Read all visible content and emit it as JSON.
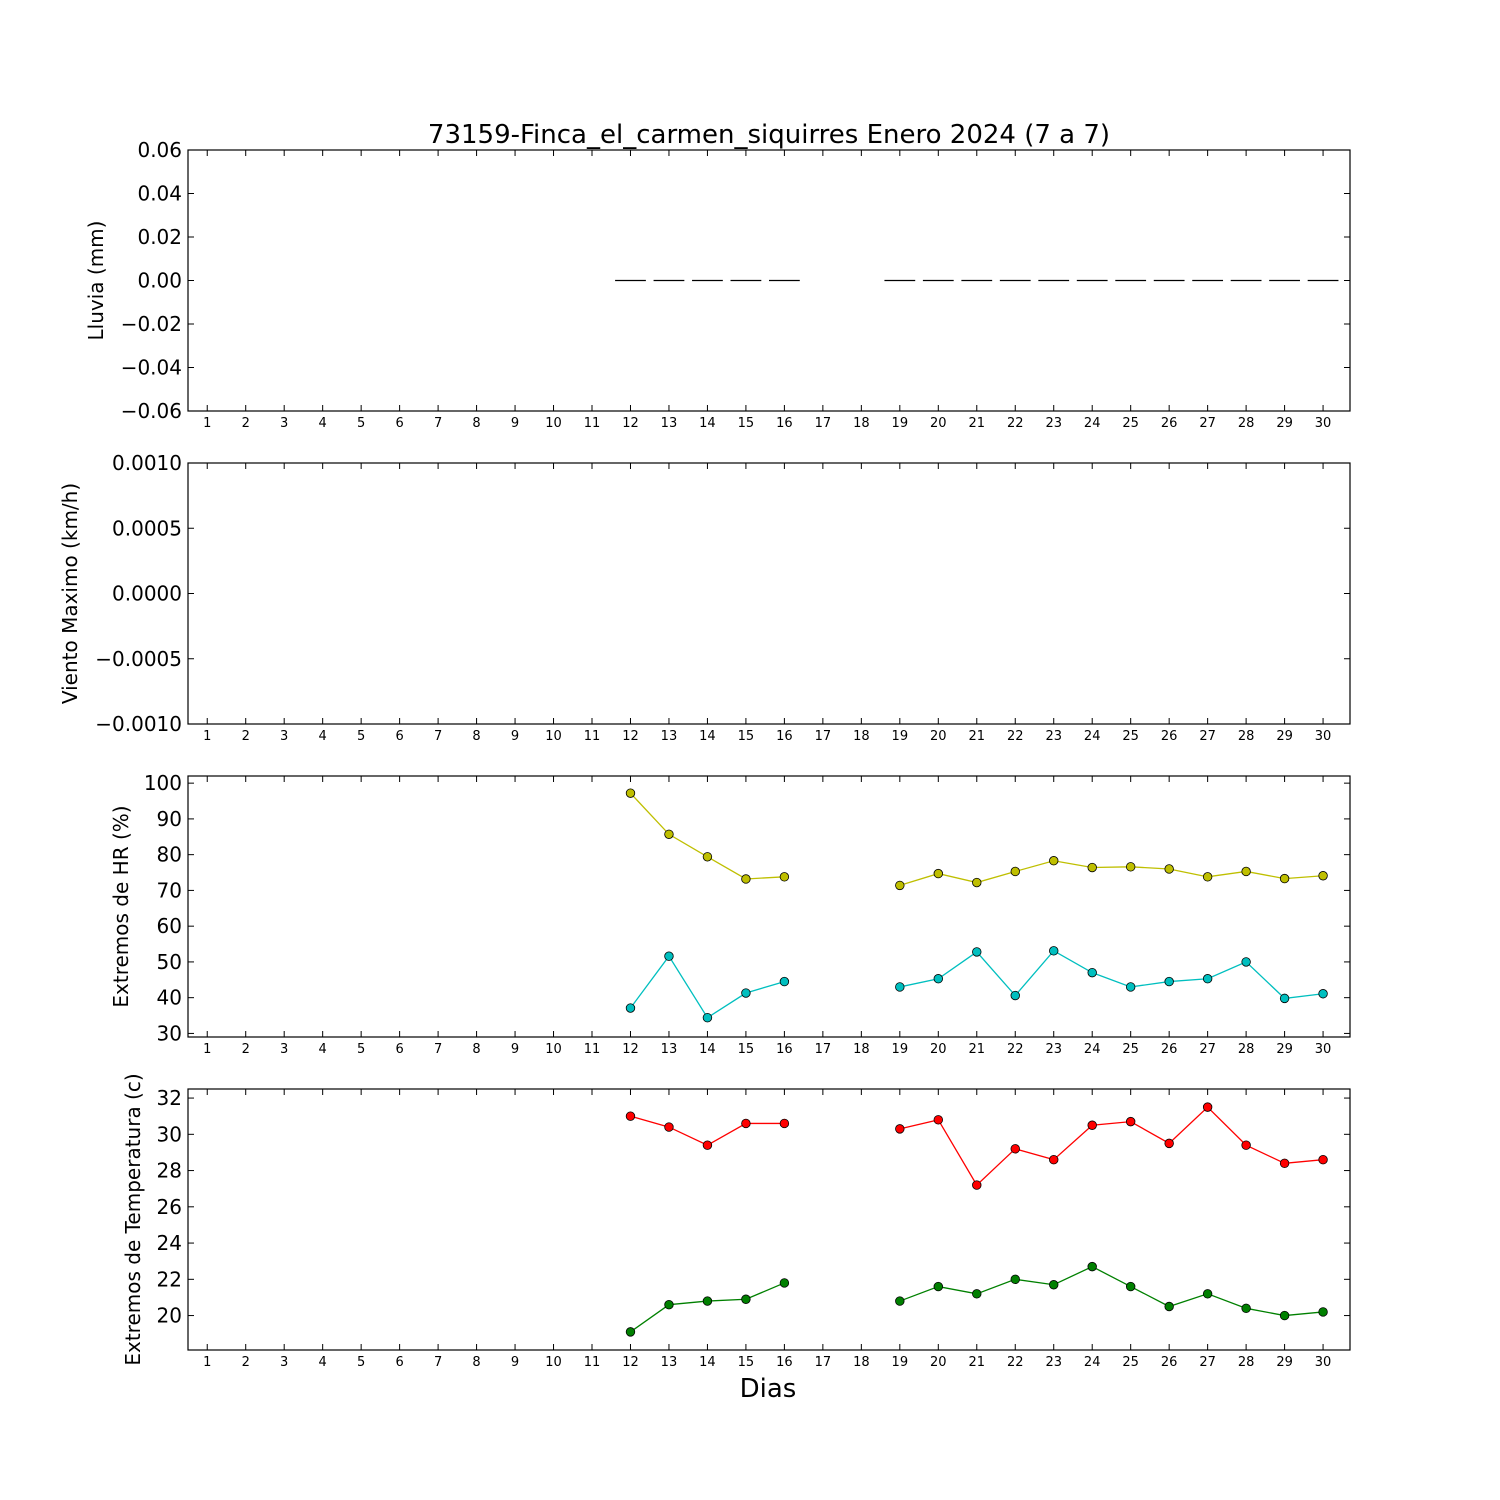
{
  "chart_data": {
    "title": "73159-Finca_el_carmen_siquirres Enero 2024  (7 a 7)",
    "xlabel": "Dias",
    "x_categories": [
      "1",
      "2",
      "3",
      "4",
      "5",
      "6",
      "7",
      "8",
      "9",
      "10",
      "11",
      "12",
      "13",
      "14",
      "15",
      "16",
      "17",
      "18",
      "19",
      "20",
      "21",
      "22",
      "23",
      "24",
      "25",
      "26",
      "27",
      "28",
      "29",
      "30"
    ],
    "panels": [
      {
        "type": "bar",
        "ylabel": "Lluvia (mm)",
        "ylim": [
          -0.06,
          0.06
        ],
        "yticks": [
          -0.06,
          -0.04,
          -0.02,
          0.0,
          0.02,
          0.04,
          0.06
        ],
        "ytick_labels": [
          "−0.06",
          "−0.04",
          "−0.02",
          "0.00",
          "0.02",
          "0.04",
          "0.06"
        ],
        "series": [
          {
            "color": "#000000",
            "x": [
              12,
              13,
              14,
              15,
              16,
              19,
              20,
              21,
              22,
              23,
              24,
              25,
              26,
              27,
              28,
              29,
              30
            ],
            "values": [
              0,
              0,
              0,
              0,
              0,
              0,
              0,
              0,
              0,
              0,
              0,
              0,
              0,
              0,
              0,
              0,
              0
            ]
          }
        ]
      },
      {
        "type": "line",
        "ylabel": "Viento Maximo (km/h)",
        "ylim": [
          -0.001,
          0.001
        ],
        "yticks": [
          -0.001,
          -0.0005,
          0.0,
          0.0005,
          0.001
        ],
        "ytick_labels": [
          "−0.0010",
          "−0.0005",
          "0.0000",
          "0.0005",
          "0.0010"
        ],
        "series": []
      },
      {
        "type": "line",
        "ylabel": "Extremos de HR (%)",
        "ylim": [
          29,
          102
        ],
        "yticks": [
          30,
          40,
          50,
          60,
          70,
          80,
          90,
          100
        ],
        "ytick_labels": [
          "30",
          "40",
          "50",
          "60",
          "70",
          "80",
          "90",
          "100"
        ],
        "series": [
          {
            "color": "#bfbf00",
            "x": [
              12,
              13,
              14,
              15,
              16,
              19,
              20,
              21,
              22,
              23,
              24,
              25,
              26,
              27,
              28,
              29,
              30
            ],
            "values": [
              97.2,
              85.7,
              79.4,
              73.2,
              73.8,
              71.4,
              74.7,
              72.2,
              75.3,
              78.3,
              76.4,
              76.6,
              76.0,
              73.8,
              75.3,
              73.3,
              74.1
            ]
          },
          {
            "color": "#00bfbf",
            "x": [
              12,
              13,
              14,
              15,
              16,
              19,
              20,
              21,
              22,
              23,
              24,
              25,
              26,
              27,
              28,
              29,
              30
            ],
            "values": [
              37.1,
              51.6,
              34.4,
              41.3,
              44.5,
              43.0,
              45.3,
              52.8,
              40.6,
              53.1,
              47.0,
              43.0,
              44.5,
              45.3,
              50.0,
              39.8,
              41.1
            ]
          }
        ]
      },
      {
        "type": "line",
        "ylabel": "Extremos de Temperatura (c)",
        "ylim": [
          18.1,
          32.5
        ],
        "yticks": [
          20,
          22,
          24,
          26,
          28,
          30,
          32
        ],
        "ytick_labels": [
          "20",
          "22",
          "24",
          "26",
          "28",
          "30",
          "32"
        ],
        "series": [
          {
            "color": "#ff0000",
            "x": [
              12,
              13,
              14,
              15,
              16,
              19,
              20,
              21,
              22,
              23,
              24,
              25,
              26,
              27,
              28,
              29,
              30
            ],
            "values": [
              31.0,
              30.4,
              29.4,
              30.6,
              30.6,
              30.3,
              30.8,
              27.2,
              29.2,
              28.6,
              30.5,
              30.7,
              29.5,
              31.5,
              29.4,
              28.4,
              28.6
            ]
          },
          {
            "color": "#008000",
            "x": [
              12,
              13,
              14,
              15,
              16,
              19,
              20,
              21,
              22,
              23,
              24,
              25,
              26,
              27,
              28,
              29,
              30
            ],
            "values": [
              19.1,
              20.6,
              20.8,
              20.9,
              21.8,
              20.8,
              21.6,
              21.2,
              22.0,
              21.7,
              22.7,
              21.6,
              20.5,
              21.2,
              20.4,
              20.0,
              20.2
            ]
          }
        ]
      }
    ]
  }
}
